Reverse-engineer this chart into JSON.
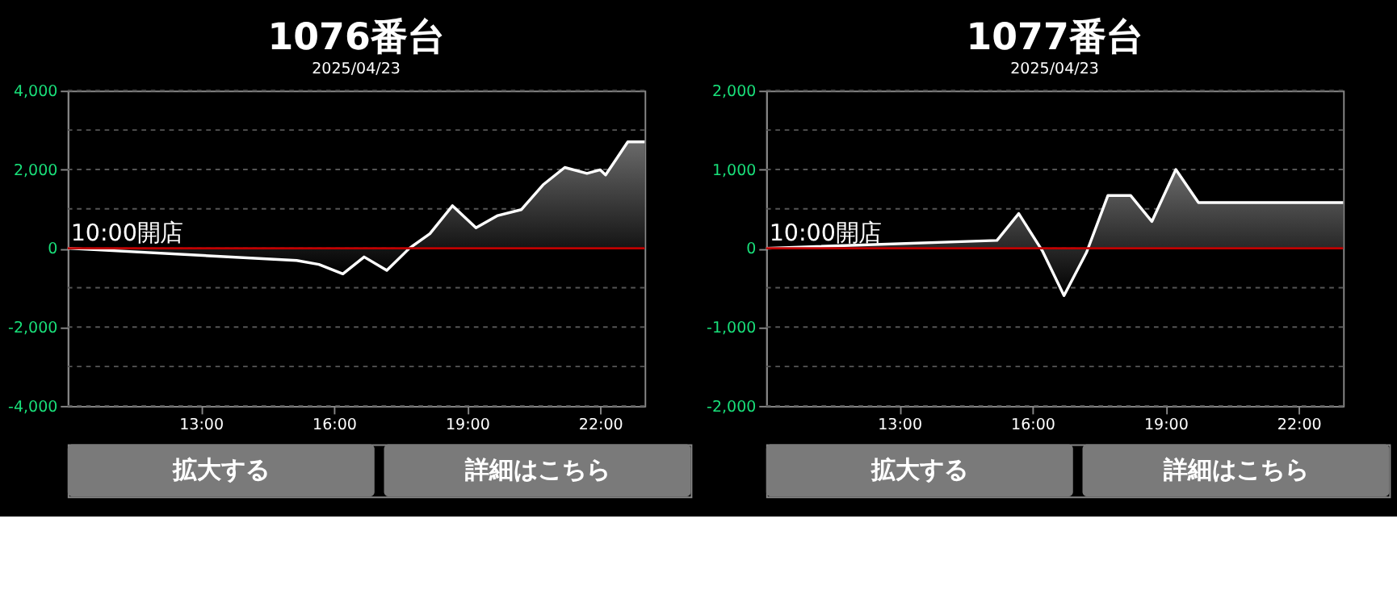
{
  "chart_data": [
    {
      "type": "area",
      "title": "1076番台",
      "subtitle": "2025/04/23",
      "color": "#ffffff",
      "x": [
        10.0,
        15.16,
        15.66,
        16.2,
        16.68,
        17.19,
        17.7,
        18.16,
        18.67,
        19.2,
        19.69,
        20.22,
        20.71,
        21.2,
        21.7,
        22.0,
        22.12,
        22.62,
        23.0
      ],
      "values": [
        0,
        -310,
        -410,
        -650,
        -220,
        -560,
        0,
        370,
        1080,
        520,
        830,
        980,
        1610,
        2050,
        1900,
        1990,
        1860,
        2700,
        2700
      ],
      "xlim": [
        10,
        23
      ],
      "xticks": [
        {
          "value": 13,
          "label": "13:00"
        },
        {
          "value": 16,
          "label": "16:00"
        },
        {
          "value": 19,
          "label": "19:00"
        },
        {
          "value": 22,
          "label": "22:00"
        }
      ],
      "ylim": [
        -4000,
        4000
      ],
      "yticks": [
        {
          "value": -4000,
          "label": "-4,000"
        },
        {
          "value": -3000,
          "label": null
        },
        {
          "value": -2000,
          "label": "-2,000"
        },
        {
          "value": -1000,
          "label": null
        },
        {
          "value": 0,
          "label": "0"
        },
        {
          "value": 1000,
          "label": null
        },
        {
          "value": 2000,
          "label": "2,000"
        },
        {
          "value": 3000,
          "label": null
        },
        {
          "value": 4000,
          "label": "4,000"
        }
      ],
      "grid": "y",
      "ref_lines": [
        {
          "axis": "y",
          "value": 0,
          "color": "#c00000"
        }
      ],
      "annotations": [
        {
          "text": "10:00開店",
          "x": 10,
          "y": 0
        },
        "拡大する",
        "詳細はこちら"
      ]
    },
    {
      "type": "area",
      "title": "1077番台",
      "subtitle": "2025/04/23",
      "color": "#ffffff",
      "x": [
        10.0,
        15.2,
        15.69,
        16.22,
        16.71,
        17.22,
        17.7,
        18.21,
        18.69,
        19.23,
        19.74,
        23.0
      ],
      "values": [
        0,
        100,
        440,
        -30,
        -600,
        -50,
        670,
        670,
        340,
        1000,
        580,
        580
      ],
      "xlim": [
        10,
        23
      ],
      "xticks": [
        {
          "value": 13,
          "label": "13:00"
        },
        {
          "value": 16,
          "label": "16:00"
        },
        {
          "value": 19,
          "label": "19:00"
        },
        {
          "value": 22,
          "label": "22:00"
        }
      ],
      "ylim": [
        -2000,
        2000
      ],
      "yticks": [
        {
          "value": -2000,
          "label": "-2,000"
        },
        {
          "value": -1500,
          "label": null
        },
        {
          "value": -1000,
          "label": "-1,000"
        },
        {
          "value": -500,
          "label": null
        },
        {
          "value": 0,
          "label": "0"
        },
        {
          "value": 500,
          "label": null
        },
        {
          "value": 1000,
          "label": "1,000"
        },
        {
          "value": 1500,
          "label": null
        },
        {
          "value": 2000,
          "label": "2,000"
        }
      ],
      "grid": "y",
      "ref_lines": [
        {
          "axis": "y",
          "value": 0,
          "color": "#c00000"
        }
      ],
      "annotations": [
        {
          "text": "10:00開店",
          "x": 10,
          "y": 0
        },
        "拡大する",
        "詳細はこちら"
      ]
    }
  ]
}
